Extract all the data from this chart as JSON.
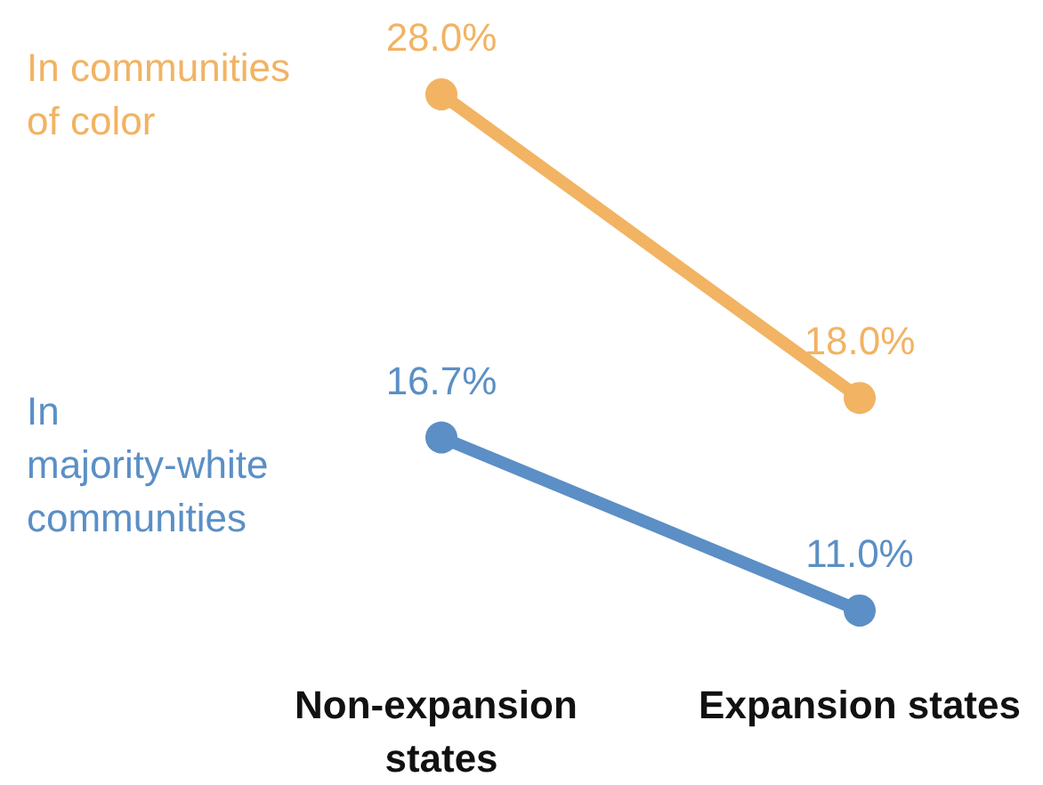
{
  "chart_data": {
    "type": "line",
    "categories": [
      "Non-expansion states",
      "Expansion states"
    ],
    "series": [
      {
        "name": "In communities of color",
        "color": "#f2b363",
        "values": [
          28.0,
          18.0
        ],
        "value_labels": [
          "28.0%",
          "18.0%"
        ]
      },
      {
        "name": "In majority-white communities",
        "color": "#5b8fc5",
        "values": [
          16.7,
          11.0
        ],
        "value_labels": [
          "16.7%",
          "11.0%"
        ]
      }
    ],
    "marker": "circle",
    "line_style": "solid",
    "grid": false,
    "legend": false,
    "tick_labels": "x"
  }
}
